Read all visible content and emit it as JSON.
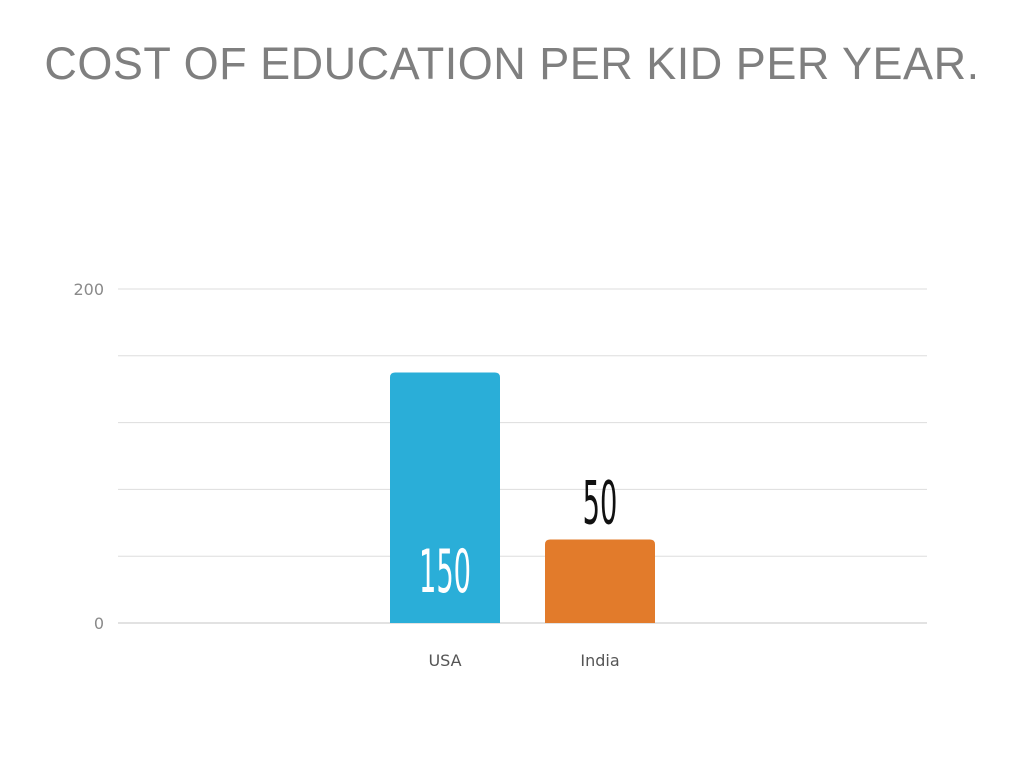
{
  "slide": {
    "title": "COST OF EDUCATION PER KID PER YEAR."
  },
  "chart_data": {
    "type": "bar",
    "title": "",
    "xlabel": "",
    "ylabel": "",
    "categories": [
      "USA",
      "India"
    ],
    "values": [
      150,
      50
    ],
    "value_labels": [
      "150",
      "50"
    ],
    "bar_colors": [
      "#2aaed8",
      "#e27b2b"
    ],
    "value_label_colors": [
      "#ffffff",
      "#111111"
    ],
    "value_label_placement": [
      "inside-bottom",
      "above"
    ],
    "ylim": [
      0,
      200
    ],
    "yticks_labeled": [
      "0",
      "200"
    ],
    "gridline_step": 40,
    "grid": true,
    "legend": "none"
  }
}
